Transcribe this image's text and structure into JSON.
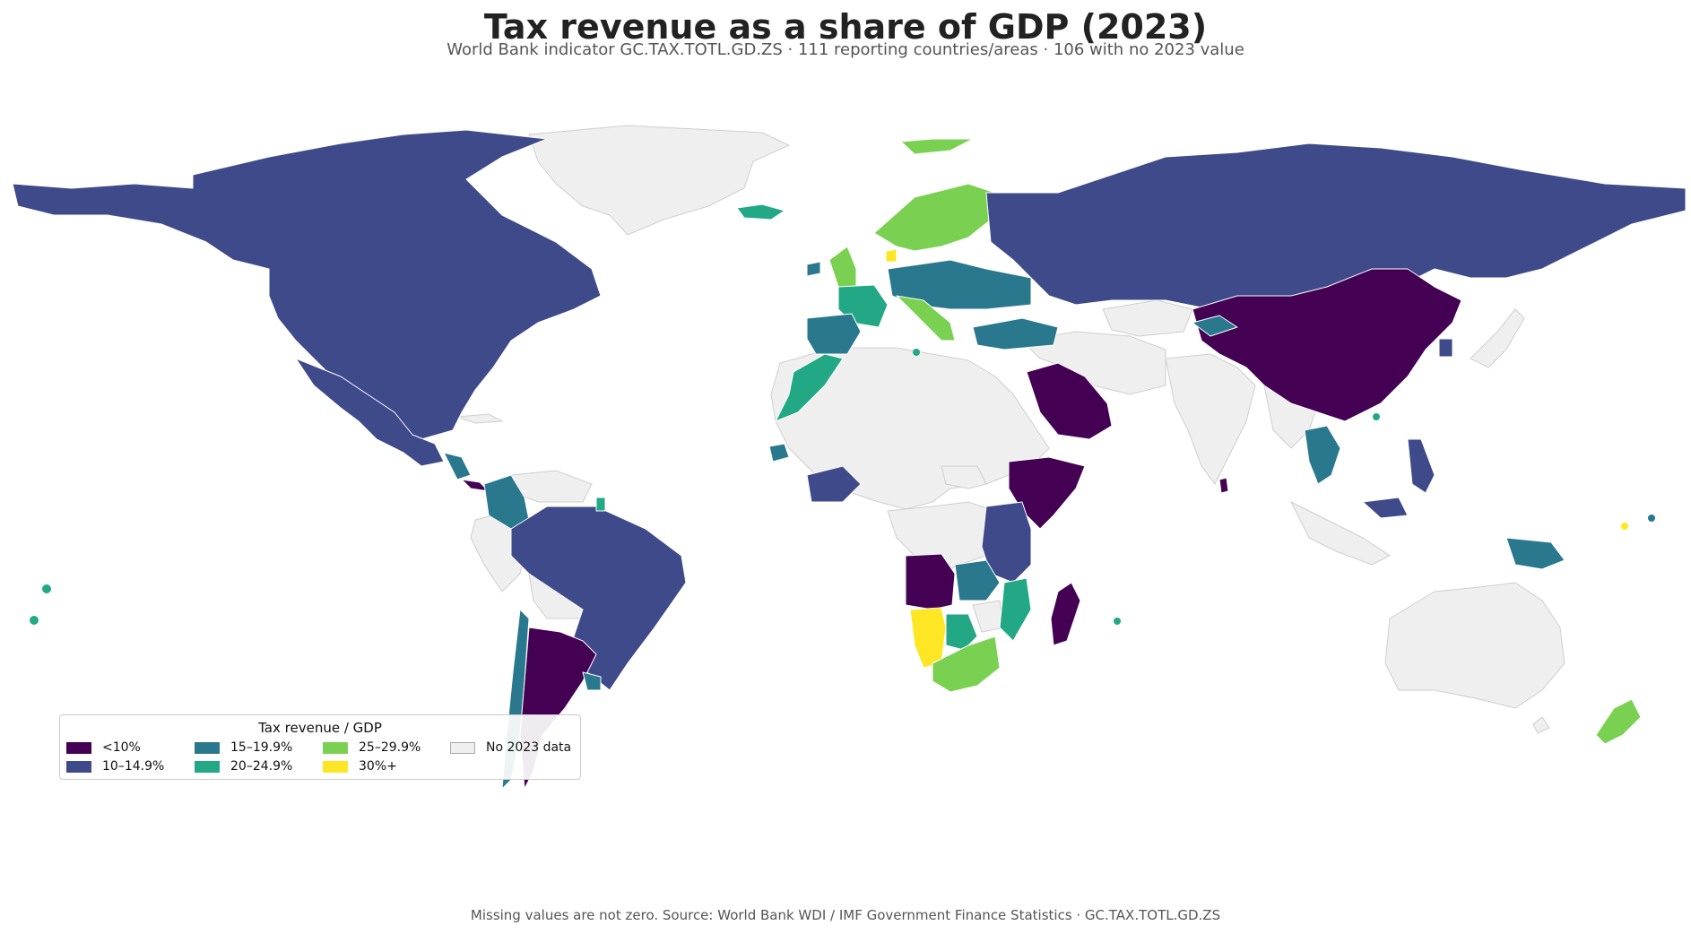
{
  "title": "Tax revenue as a share of GDP (2023)",
  "subtitle": "World Bank indicator GC.TAX.TOTL.GD.ZS · 111 reporting countries/areas · 106 with no 2023 value",
  "footer": "Missing values are not zero. Source: World Bank WDI / IMF Government Finance Statistics · GC.TAX.TOTL.GD.ZS",
  "legend": {
    "title": "Tax revenue / GDP",
    "items": [
      {
        "label": "<10%",
        "color": "#440154"
      },
      {
        "label": "10–14.9%",
        "color": "#3e4a89"
      },
      {
        "label": "15–19.9%",
        "color": "#2a788e"
      },
      {
        "label": "20–24.9%",
        "color": "#22a884"
      },
      {
        "label": "25–29.9%",
        "color": "#7ad151"
      },
      {
        "label": "30%+",
        "color": "#fde725"
      },
      {
        "label": "No 2023 data",
        "color": "#efefef"
      }
    ]
  },
  "colors": {
    "lt10": "#440154",
    "c10": "#3e4a89",
    "c15": "#2a788e",
    "c20": "#22a884",
    "c25": "#7ad151",
    "c30": "#fde725",
    "nodata": "#efefef"
  }
}
